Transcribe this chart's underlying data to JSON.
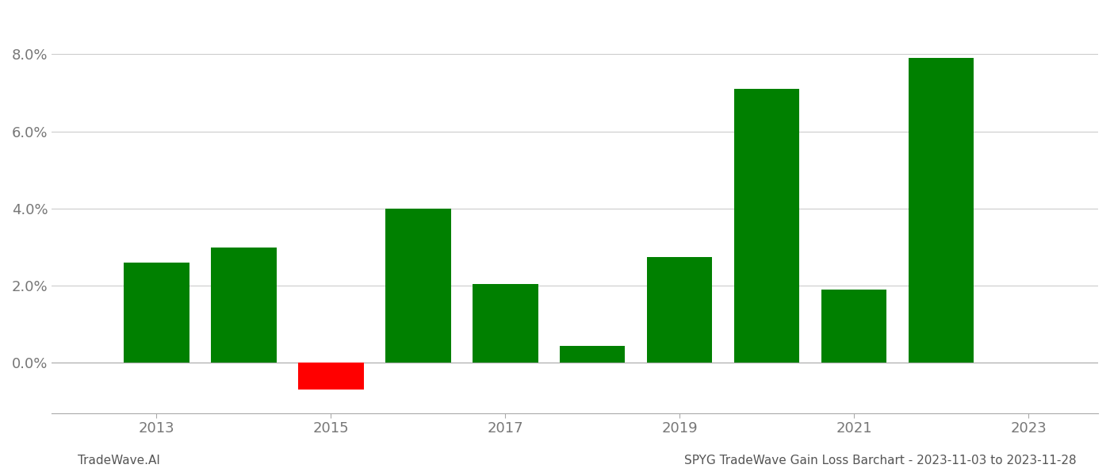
{
  "years": [
    2013,
    2014,
    2015,
    2016,
    2017,
    2018,
    2019,
    2020,
    2021,
    2022
  ],
  "values": [
    0.026,
    0.03,
    -0.007,
    0.04,
    0.0205,
    0.0045,
    0.0275,
    0.071,
    0.019,
    0.079
  ],
  "colors": [
    "#008000",
    "#008000",
    "#ff0000",
    "#008000",
    "#008000",
    "#008000",
    "#008000",
    "#008000",
    "#008000",
    "#008000"
  ],
  "title": "SPYG TradeWave Gain Loss Barchart - 2023-11-03 to 2023-11-28",
  "footer_left": "TradeWave.AI",
  "ylim_min": -0.013,
  "ylim_max": 0.091,
  "yticks": [
    0.0,
    0.02,
    0.04,
    0.06,
    0.08
  ],
  "xlim_min": 2011.8,
  "xlim_max": 2023.8,
  "xticks": [
    2013,
    2015,
    2017,
    2019,
    2021,
    2023
  ],
  "background_color": "#ffffff",
  "grid_color": "#cccccc",
  "bar_width": 0.75,
  "tick_label_color": "#777777",
  "footer_color": "#555555",
  "footer_fontsize": 11,
  "tick_fontsize": 13
}
